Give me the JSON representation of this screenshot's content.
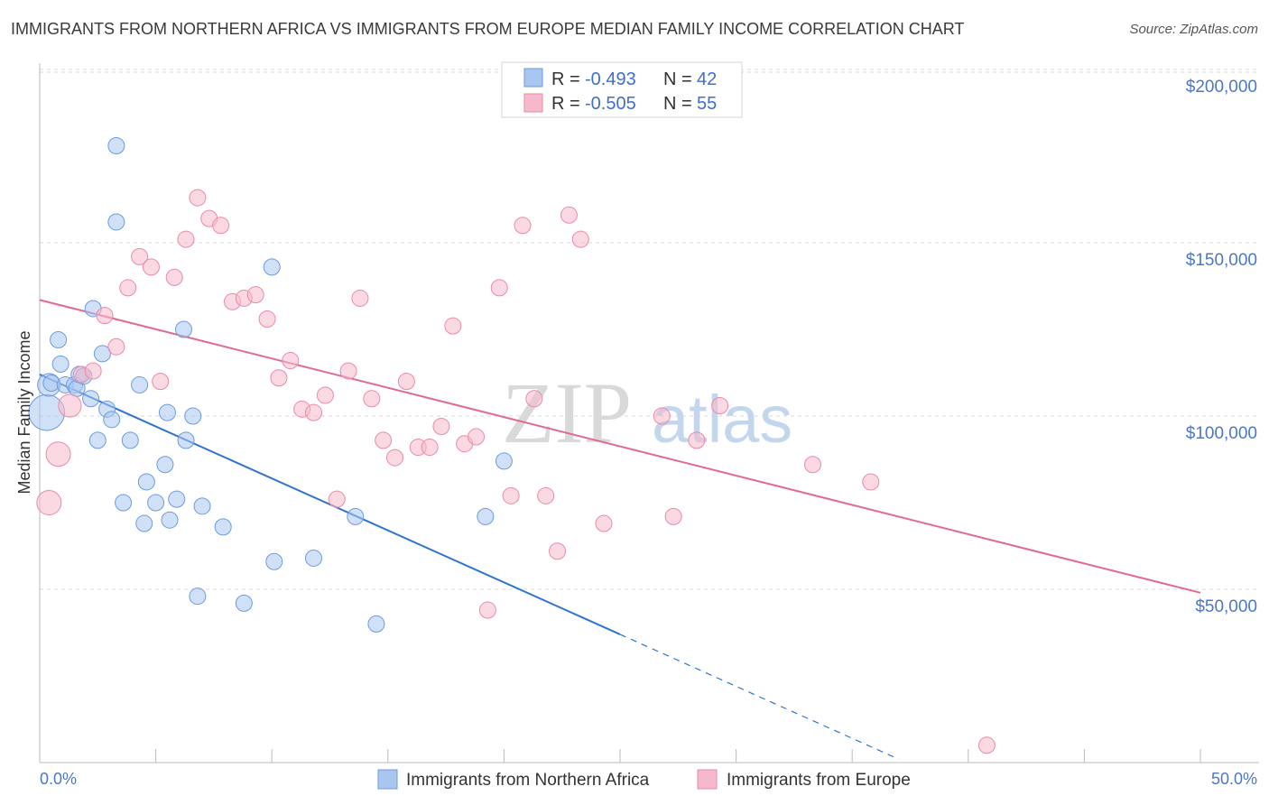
{
  "title": "IMMIGRANTS FROM NORTHERN AFRICA VS IMMIGRANTS FROM EUROPE MEDIAN FAMILY INCOME CORRELATION CHART",
  "source": "Source: ZipAtlas.com",
  "watermark": {
    "zip": "ZIP",
    "atlas": "atlas"
  },
  "legend_top": {
    "rows": [
      {
        "r_label": "R =",
        "r_value": "-0.493",
        "n_label": "N =",
        "n_value": "42"
      },
      {
        "r_label": "R =",
        "r_value": "-0.505",
        "n_label": "N =",
        "n_value": "55"
      }
    ]
  },
  "legend_bottom": {
    "series1": "Immigrants from Northern Africa",
    "series2": "Immigrants from Europe"
  },
  "colors": {
    "blue_fill": "#a9c6f0",
    "blue_stroke": "#6d9be0",
    "blue_line": "#2f74d0",
    "pink_fill": "#f6b9cb",
    "pink_stroke": "#e98aa7",
    "pink_line": "#e06a90",
    "grid": "#d8d8d8",
    "tick_text": "#4a78c8"
  },
  "chart_data": {
    "type": "scatter",
    "title": "IMMIGRANTS FROM NORTHERN AFRICA VS IMMIGRANTS FROM EUROPE MEDIAN FAMILY INCOME CORRELATION CHART",
    "xlabel": "",
    "ylabel": "Median Family Income",
    "xlim": [
      0,
      50
    ],
    "ylim": [
      0,
      205000
    ],
    "x_tick_labels": [
      "0.0%",
      "50.0%"
    ],
    "y_ticks": [
      {
        "value": 50000,
        "label": "$50,000"
      },
      {
        "value": 100000,
        "label": "$100,000"
      },
      {
        "value": 150000,
        "label": "$150,000"
      },
      {
        "value": 200000,
        "label": "$200,000"
      }
    ],
    "grid": true,
    "series": [
      {
        "name": "Immigrants from Northern Africa",
        "color": "blue",
        "points": [
          [
            0.3,
            101000,
            2.2
          ],
          [
            0.4,
            109000,
            1.4
          ],
          [
            0.5,
            109500,
            1.0
          ],
          [
            0.8,
            122000,
            1.0
          ],
          [
            0.9,
            115000,
            1.0
          ],
          [
            1.1,
            109000,
            1.0
          ],
          [
            1.5,
            109000,
            1.0
          ],
          [
            1.6,
            108000,
            1.0
          ],
          [
            1.7,
            112000,
            1.0
          ],
          [
            1.9,
            111500,
            1.0
          ],
          [
            2.2,
            105000,
            1.0
          ],
          [
            2.5,
            93000,
            1.0
          ],
          [
            2.3,
            131000,
            1.0
          ],
          [
            2.7,
            118000,
            1.0
          ],
          [
            2.9,
            102000,
            1.0
          ],
          [
            3.1,
            99000,
            1.0
          ],
          [
            3.3,
            178000,
            1.0
          ],
          [
            3.3,
            156000,
            1.0
          ],
          [
            3.6,
            75000,
            1.0
          ],
          [
            3.9,
            93000,
            1.0
          ],
          [
            4.3,
            109000,
            1.0
          ],
          [
            4.5,
            69000,
            1.0
          ],
          [
            4.6,
            81000,
            1.0
          ],
          [
            5.0,
            75000,
            1.0
          ],
          [
            5.4,
            86000,
            1.0
          ],
          [
            5.5,
            101000,
            1.0
          ],
          [
            5.6,
            70000,
            1.0
          ],
          [
            5.9,
            76000,
            1.0
          ],
          [
            6.2,
            125000,
            1.0
          ],
          [
            6.3,
            93000,
            1.0
          ],
          [
            6.6,
            100000,
            1.0
          ],
          [
            6.8,
            48000,
            1.0
          ],
          [
            7.0,
            74000,
            1.0
          ],
          [
            7.9,
            68000,
            1.0
          ],
          [
            8.8,
            46000,
            1.0
          ],
          [
            10.0,
            143000,
            1.0
          ],
          [
            10.1,
            58000,
            1.0
          ],
          [
            11.8,
            59000,
            1.0
          ],
          [
            13.6,
            71000,
            1.0
          ],
          [
            14.5,
            40000,
            1.0
          ],
          [
            19.2,
            71000,
            1.0
          ],
          [
            20.0,
            87000,
            1.0
          ]
        ]
      },
      {
        "name": "Immigrants from Europe",
        "color": "pink",
        "points": [
          [
            0.4,
            75000,
            1.5
          ],
          [
            0.8,
            89000,
            1.5
          ],
          [
            1.3,
            103000,
            1.4
          ],
          [
            1.8,
            112000,
            1.0
          ],
          [
            2.3,
            113000,
            1.0
          ],
          [
            2.8,
            129000,
            1.0
          ],
          [
            3.3,
            120000,
            1.0
          ],
          [
            3.8,
            137000,
            1.0
          ],
          [
            4.3,
            146000,
            1.0
          ],
          [
            4.8,
            143000,
            1.0
          ],
          [
            5.2,
            110000,
            1.0
          ],
          [
            5.8,
            140000,
            1.0
          ],
          [
            6.3,
            151000,
            1.0
          ],
          [
            6.8,
            163000,
            1.0
          ],
          [
            7.3,
            157000,
            1.0
          ],
          [
            7.8,
            155000,
            1.0
          ],
          [
            8.3,
            133000,
            1.0
          ],
          [
            8.8,
            134000,
            1.0
          ],
          [
            9.3,
            135000,
            1.0
          ],
          [
            9.8,
            128000,
            1.0
          ],
          [
            10.3,
            111000,
            1.0
          ],
          [
            10.8,
            116000,
            1.0
          ],
          [
            11.3,
            102000,
            1.0
          ],
          [
            11.8,
            101000,
            1.0
          ],
          [
            12.3,
            106000,
            1.0
          ],
          [
            12.8,
            76000,
            1.0
          ],
          [
            13.3,
            113000,
            1.0
          ],
          [
            13.8,
            134000,
            1.0
          ],
          [
            14.3,
            105000,
            1.0
          ],
          [
            14.8,
            93000,
            1.0
          ],
          [
            15.3,
            88000,
            1.0
          ],
          [
            15.8,
            110000,
            1.0
          ],
          [
            16.3,
            91000,
            1.0
          ],
          [
            16.8,
            91000,
            1.0
          ],
          [
            17.3,
            97000,
            1.0
          ],
          [
            17.8,
            126000,
            1.0
          ],
          [
            18.3,
            92000,
            1.0
          ],
          [
            18.8,
            94000,
            1.0
          ],
          [
            19.3,
            44000,
            1.0
          ],
          [
            19.8,
            137000,
            1.0
          ],
          [
            20.3,
            77000,
            1.0
          ],
          [
            20.8,
            155000,
            1.0
          ],
          [
            21.3,
            105000,
            1.0
          ],
          [
            21.8,
            77000,
            1.0
          ],
          [
            22.3,
            61000,
            1.0
          ],
          [
            22.8,
            158000,
            1.0
          ],
          [
            23.3,
            151000,
            1.0
          ],
          [
            24.3,
            69000,
            1.0
          ],
          [
            26.8,
            100000,
            1.0
          ],
          [
            27.3,
            71000,
            1.0
          ],
          [
            28.3,
            93000,
            1.0
          ],
          [
            29.3,
            103000,
            1.0
          ],
          [
            33.3,
            86000,
            1.0
          ],
          [
            35.8,
            81000,
            1.0
          ],
          [
            40.8,
            5000,
            1.0
          ]
        ]
      }
    ],
    "trendlines": [
      {
        "series": "Immigrants from Northern Africa",
        "x": [
          0,
          25
        ],
        "y": [
          112000,
          37000
        ],
        "dashed_to": [
          37,
          1000
        ]
      },
      {
        "series": "Immigrants from Europe",
        "x": [
          0,
          50
        ],
        "y": [
          133500,
          49000
        ]
      }
    ]
  }
}
